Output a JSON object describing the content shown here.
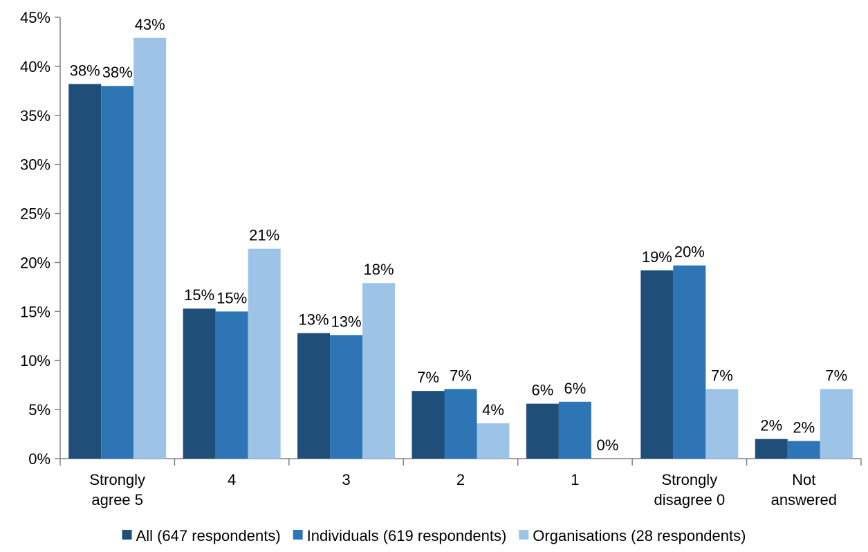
{
  "chart_data": {
    "type": "bar",
    "categories": [
      [
        "Strongly",
        "agree 5"
      ],
      [
        "4"
      ],
      [
        "3"
      ],
      [
        "2"
      ],
      [
        "1"
      ],
      [
        "Strongly",
        "disagree 0"
      ],
      [
        "Not",
        "answered"
      ]
    ],
    "series": [
      {
        "name": "All (647 respondents)",
        "color": "#1f4e79",
        "values": [
          38.2,
          15.3,
          12.8,
          6.9,
          5.6,
          19.2,
          2.0
        ],
        "labels": [
          "38%",
          "15%",
          "13%",
          "7%",
          "6%",
          "19%",
          "2%"
        ]
      },
      {
        "name": "Individuals (619 respondents)",
        "color": "#2e75b6",
        "values": [
          38.0,
          15.0,
          12.6,
          7.1,
          5.8,
          19.7,
          1.8
        ],
        "labels": [
          "38%",
          "15%",
          "13%",
          "7%",
          "6%",
          "20%",
          "2%"
        ]
      },
      {
        "name": "Organisations (28 respondents)",
        "color": "#9dc3e6",
        "values": [
          42.9,
          21.4,
          17.9,
          3.6,
          0.0,
          7.1,
          7.1
        ],
        "labels": [
          "43%",
          "21%",
          "18%",
          "4%",
          "0%",
          "7%",
          "7%"
        ]
      }
    ],
    "yticks": [
      "0%",
      "5%",
      "10%",
      "15%",
      "20%",
      "25%",
      "30%",
      "35%",
      "40%",
      "45%"
    ],
    "ylim": [
      0,
      45
    ],
    "ystep": 5,
    "title": "",
    "xlabel": "",
    "ylabel": "",
    "grid": false,
    "legend_position": "bottom"
  }
}
